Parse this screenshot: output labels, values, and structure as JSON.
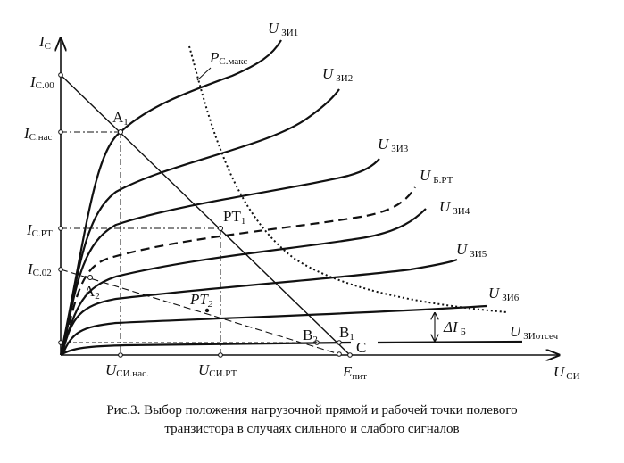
{
  "axes": {
    "y_label": "I",
    "y_sub": "С",
    "x_label": "U",
    "x_sub": "СИ"
  },
  "y_ticks": [
    {
      "main": "I",
      "sub": "С.00"
    },
    {
      "main": "I",
      "sub": "С.нас"
    },
    {
      "main": "I",
      "sub": "С.РТ"
    },
    {
      "main": "I",
      "sub": "С.02"
    }
  ],
  "x_ticks": [
    {
      "main": "U",
      "sub": "СИ.нас."
    },
    {
      "main": "U",
      "sub": "СИ.РТ"
    },
    {
      "main": "E",
      "sub": "пит"
    }
  ],
  "curves": [
    {
      "main": "U",
      "sub": "ЗИ1"
    },
    {
      "main": "U",
      "sub": "ЗИ2"
    },
    {
      "main": "U",
      "sub": "ЗИ3"
    },
    {
      "main": "U",
      "sub": "Б.РТ"
    },
    {
      "main": "U",
      "sub": "ЗИ4"
    },
    {
      "main": "U",
      "sub": "ЗИ5"
    },
    {
      "main": "U",
      "sub": "ЗИ6"
    },
    {
      "main": "U",
      "sub": "ЗИотсеч"
    }
  ],
  "power_curve": {
    "main": "P",
    "sub": "С.макс"
  },
  "points": {
    "a1": {
      "main": "A",
      "sub": "1"
    },
    "a2": {
      "main": "A",
      "sub": "2"
    },
    "pt1": {
      "main": "PT",
      "sub": "1"
    },
    "pt2": {
      "main": "PT",
      "sub": "2"
    },
    "b1": {
      "main": "B",
      "sub": "1"
    },
    "b2": {
      "main": "B",
      "sub": "2"
    },
    "c": "C"
  },
  "delta": {
    "main": "ΔI",
    "sub": "Б"
  },
  "caption": {
    "line1": "Рис.3. Выбор положения нагрузочной прямой и рабочей точки полевого",
    "line2": "транзистора в случаях сильного и слабого сигналов"
  }
}
